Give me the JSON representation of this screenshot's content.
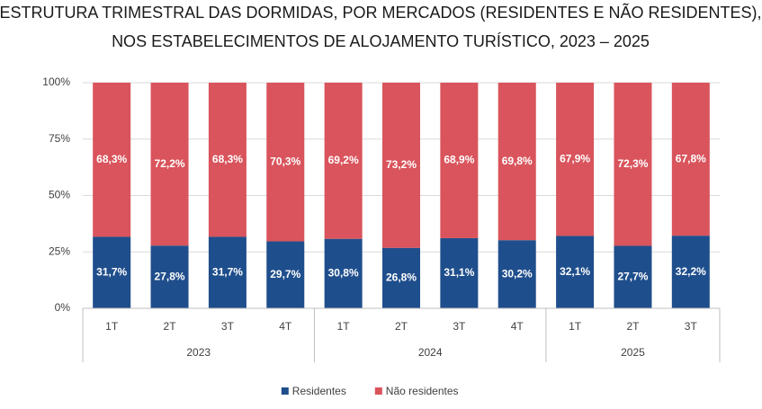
{
  "chart_data": {
    "type": "stacked_bar",
    "title": "ESTRUTURA TRIMESTRAL DAS DORMIDAS, POR MERCADOS (RESIDENTES E NÃO RESIDENTES),",
    "subtitle": "NOS ESTABELECIMENTOS DE ALOJAMENTO TURÍSTICO, 2023 – 2025",
    "groups": [
      {
        "name": "2023",
        "categories": [
          "1T",
          "2T",
          "3T",
          "4T"
        ]
      },
      {
        "name": "2024",
        "categories": [
          "1T",
          "2T",
          "3T",
          "4T"
        ]
      },
      {
        "name": "2025",
        "categories": [
          "1T",
          "2T",
          "3T"
        ]
      }
    ],
    "series": [
      {
        "name": "Residentes",
        "color": "#1f4e8c",
        "values": [
          31.7,
          27.8,
          31.7,
          29.7,
          30.8,
          26.8,
          31.1,
          30.2,
          32.1,
          27.7,
          32.2
        ],
        "value_labels": [
          "31,7%",
          "27,8%",
          "31,7%",
          "29,7%",
          "30,8%",
          "26,8%",
          "31,1%",
          "30,2%",
          "32,1%",
          "27,7%",
          "32,2%"
        ]
      },
      {
        "name": "Não residentes",
        "color": "#d9545c",
        "values": [
          68.3,
          72.2,
          68.3,
          70.3,
          69.2,
          73.2,
          68.9,
          69.8,
          67.9,
          72.3,
          67.8
        ],
        "value_labels": [
          "68,3%",
          "72,2%",
          "68,3%",
          "70,3%",
          "69,2%",
          "73,2%",
          "68,9%",
          "69,8%",
          "67,9%",
          "72,3%",
          "67,8%"
        ]
      }
    ],
    "ylim": [
      0,
      100
    ],
    "yticks": [
      {
        "value": 0,
        "label": "0%"
      },
      {
        "value": 25,
        "label": "25%"
      },
      {
        "value": 50,
        "label": "50%"
      },
      {
        "value": 75,
        "label": "75%"
      },
      {
        "value": 100,
        "label": "100%"
      }
    ],
    "grid": true,
    "legend": "bottom"
  }
}
